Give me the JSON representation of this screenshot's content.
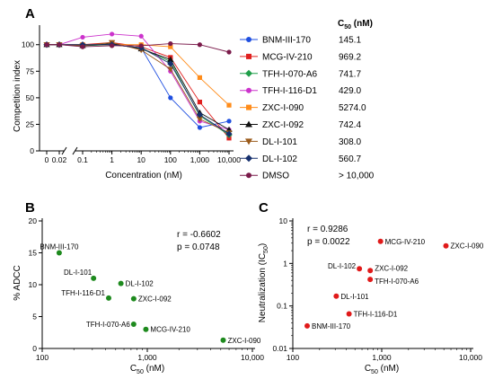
{
  "chart_data": [
    {
      "type": "line",
      "panel": "A",
      "xlabel": "Concentration (nM)",
      "ylabel": "Competition index",
      "x_scale": "log",
      "x_tick_labels": [
        "0",
        "0.02",
        "0.1",
        "1",
        "10",
        "100",
        "1,000",
        "10,000"
      ],
      "y_tick_labels": [
        "0",
        "25",
        "50",
        "75",
        "100"
      ],
      "ylim": [
        0,
        115
      ],
      "x": [
        0,
        0.02,
        0.1,
        1,
        10,
        100,
        1000,
        10000
      ],
      "legend_header": "C50 (nM)",
      "legend_placement": "right",
      "series": [
        {
          "name": "BNM-III-170",
          "c50": "145.1",
          "color": "#1f4fe0",
          "marker": "circle",
          "values": [
            100,
            100,
            100,
            100,
            97,
            50,
            22,
            28
          ]
        },
        {
          "name": "MCG-IV-210",
          "c50": "969.2",
          "color": "#e0201f",
          "marker": "square",
          "values": [
            100,
            100,
            100,
            102,
            98,
            88,
            46,
            12
          ]
        },
        {
          "name": "TFH-I-070-A6",
          "c50": "741.7",
          "color": "#1e9e48",
          "marker": "diamond",
          "values": [
            100,
            100,
            99,
            100,
            97,
            84,
            33,
            15
          ]
        },
        {
          "name": "TFH-I-116-D1",
          "c50": "429.0",
          "color": "#cc33cc",
          "marker": "circle",
          "values": [
            100,
            100,
            107,
            110,
            108,
            75,
            28,
            20
          ]
        },
        {
          "name": "ZXC-I-090",
          "c50": "5274.0",
          "color": "#ff8c1a",
          "marker": "square",
          "values": [
            100,
            100,
            100,
            100,
            100,
            98,
            69,
            43
          ]
        },
        {
          "name": "ZXC-I-092",
          "c50": "742.4",
          "color": "#111111",
          "marker": "triangle-up",
          "values": [
            100,
            100,
            99,
            101,
            96,
            86,
            36,
            20
          ]
        },
        {
          "name": "DL-I-101",
          "c50": "308.0",
          "color": "#9a5a1a",
          "marker": "triangle-down",
          "values": [
            100,
            100,
            99,
            102,
            95,
            77,
            30,
            17
          ]
        },
        {
          "name": "DL-I-102",
          "c50": "560.7",
          "color": "#16306e",
          "marker": "diamond",
          "values": [
            100,
            100,
            100,
            100,
            97,
            82,
            34,
            16
          ]
        },
        {
          "name": "DMSO",
          "c50": "> 10,000",
          "color": "#7a1a4a",
          "marker": "circle",
          "values": [
            100,
            100,
            98,
            99,
            99,
            101,
            100,
            93
          ]
        }
      ]
    },
    {
      "type": "scatter",
      "panel": "B",
      "xlabel": "C50 (nM)",
      "ylabel": "% ADCC",
      "x_scale": "log",
      "xlim": [
        100,
        10000
      ],
      "ylim": [
        0,
        20
      ],
      "x_tick_labels": [
        "100",
        "1,000",
        "10,000"
      ],
      "y_tick_labels": [
        "0",
        "5",
        "10",
        "15",
        "20"
      ],
      "stats": [
        "r = -0.6602",
        "p = 0.0748"
      ],
      "color": "#1e8a1e",
      "points": [
        {
          "label": "BNM-III-170",
          "x": 145.1,
          "y": 15.0
        },
        {
          "label": "DL-I-101",
          "x": 308.0,
          "y": 11.0
        },
        {
          "label": "DL-I-102",
          "x": 560.7,
          "y": 10.2
        },
        {
          "label": "TFH-I-116-D1",
          "x": 429.0,
          "y": 7.9
        },
        {
          "label": "ZXC-I-092",
          "x": 742.4,
          "y": 7.8
        },
        {
          "label": "TFH-I-070-A6",
          "x": 741.7,
          "y": 3.8
        },
        {
          "label": "MCG-IV-210",
          "x": 969.2,
          "y": 3.0
        },
        {
          "label": "ZXC-I-090",
          "x": 5274.0,
          "y": 1.3
        }
      ]
    },
    {
      "type": "scatter",
      "panel": "C",
      "xlabel": "C50 (nM)",
      "ylabel": "Neutralization (IC50)",
      "x_scale": "log",
      "y_scale": "log",
      "xlim": [
        100,
        10000
      ],
      "ylim": [
        0.01,
        10
      ],
      "x_tick_labels": [
        "100",
        "1,000",
        "10,000"
      ],
      "y_tick_labels": [
        "0.01",
        "0.1",
        "1",
        "10"
      ],
      "stats": [
        "r = 0.9286",
        "p = 0.0022"
      ],
      "color": "#e01a1a",
      "points": [
        {
          "label": "MCG-IV-210",
          "x": 969.2,
          "y": 3.3
        },
        {
          "label": "ZXC-I-090",
          "x": 5274.0,
          "y": 2.6
        },
        {
          "label": "DL-I-102",
          "x": 560.7,
          "y": 0.75
        },
        {
          "label": "ZXC-I-092",
          "x": 742.4,
          "y": 0.68
        },
        {
          "label": "TFH-I-070-A6",
          "x": 741.7,
          "y": 0.42
        },
        {
          "label": "DL-I-101",
          "x": 308.0,
          "y": 0.17
        },
        {
          "label": "TFH-I-116-D1",
          "x": 429.0,
          "y": 0.065
        },
        {
          "label": "BNM-III-170",
          "x": 145.1,
          "y": 0.034
        }
      ]
    }
  ],
  "panels": {
    "a": {
      "label": "A",
      "ylabel": "Competition index",
      "xlabel": "Concentration (nM)",
      "legend_header_main": "C",
      "legend_header_sub": "50",
      "legend_header_unit": " (nM)"
    },
    "b": {
      "label": "B",
      "ylabel": "% ADCC",
      "xlabel_main": "C",
      "xlabel_sub": "50",
      "xlabel_unit": " (nM)"
    },
    "c": {
      "label": "C",
      "ylabel_main": "Neutralization (IC",
      "ylabel_sub": "50",
      "ylabel_end": ")",
      "xlabel_main": "C",
      "xlabel_sub": "50",
      "xlabel_unit": " (nM)"
    }
  }
}
